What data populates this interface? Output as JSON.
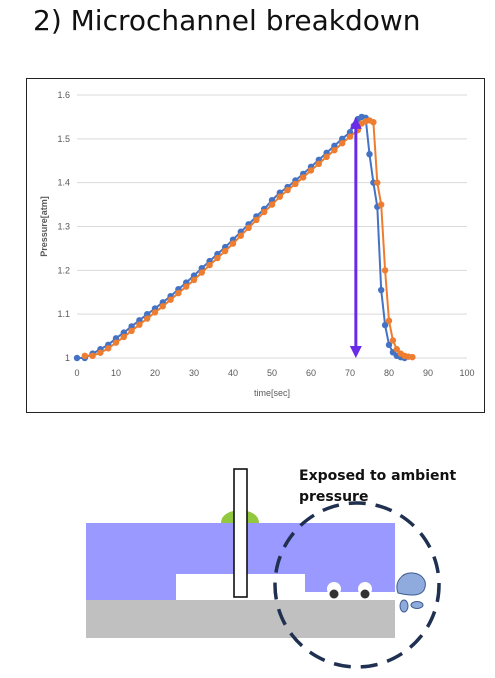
{
  "header": {
    "title": "2) Microchannel breakdown"
  },
  "chart_data": {
    "type": "line",
    "title": "",
    "xlabel": "time[sec]",
    "ylabel": "Pressure[atm]",
    "xlim": [
      0,
      100
    ],
    "ylim": [
      1,
      1.6
    ],
    "xticks": [
      "0",
      "10",
      "20",
      "30",
      "40",
      "50",
      "60",
      "70",
      "80",
      "90",
      "100"
    ],
    "yticks": [
      "1",
      "1.1",
      "1.2",
      "1.3",
      "1.4",
      "1.5",
      "1.6"
    ],
    "grid": true,
    "legend": "none",
    "series": [
      {
        "color": "#4472C4",
        "x": [
          0,
          2,
          4,
          6,
          8,
          10,
          12,
          14,
          16,
          18,
          20,
          22,
          24,
          26,
          28,
          30,
          32,
          34,
          36,
          38,
          40,
          42,
          44,
          46,
          48,
          50,
          52,
          54,
          56,
          58,
          60,
          62,
          64,
          66,
          68,
          70,
          71,
          72,
          73,
          74,
          75,
          76,
          77,
          78,
          79,
          80,
          81,
          82,
          83,
          84
        ],
        "y": [
          1.0,
          1.0,
          1.01,
          1.02,
          1.03,
          1.045,
          1.058,
          1.072,
          1.086,
          1.1,
          1.113,
          1.127,
          1.141,
          1.157,
          1.172,
          1.188,
          1.205,
          1.221,
          1.237,
          1.253,
          1.27,
          1.288,
          1.305,
          1.323,
          1.34,
          1.36,
          1.377,
          1.39,
          1.405,
          1.42,
          1.436,
          1.452,
          1.468,
          1.484,
          1.5,
          1.515,
          1.53,
          1.545,
          1.55,
          1.548,
          1.465,
          1.4,
          1.345,
          1.155,
          1.075,
          1.03,
          1.013,
          1.005,
          1.002,
          1.0
        ]
      },
      {
        "color": "#ED7D31",
        "x": [
          2,
          4,
          6,
          8,
          10,
          12,
          14,
          16,
          18,
          20,
          22,
          24,
          26,
          28,
          30,
          32,
          34,
          36,
          38,
          40,
          42,
          44,
          46,
          48,
          50,
          52,
          54,
          56,
          58,
          60,
          62,
          64,
          66,
          68,
          70,
          72,
          73,
          74,
          75,
          76,
          77,
          78,
          79,
          80,
          81,
          82,
          83,
          84,
          85,
          86
        ],
        "y": [
          1.005,
          1.005,
          1.012,
          1.022,
          1.035,
          1.048,
          1.062,
          1.076,
          1.09,
          1.104,
          1.118,
          1.133,
          1.148,
          1.163,
          1.178,
          1.195,
          1.212,
          1.228,
          1.244,
          1.261,
          1.279,
          1.297,
          1.315,
          1.333,
          1.35,
          1.368,
          1.383,
          1.397,
          1.412,
          1.428,
          1.443,
          1.459,
          1.474,
          1.49,
          1.505,
          1.52,
          1.535,
          1.54,
          1.542,
          1.538,
          1.4,
          1.35,
          1.2,
          1.085,
          1.04,
          1.02,
          1.01,
          1.005,
          1.003,
          1.002
        ]
      }
    ],
    "annotation": {
      "type": "double-arrow",
      "color": "#6A2BE8",
      "x": 71.5,
      "y_from": 1.0,
      "y_to": 1.55
    }
  },
  "diagram": {
    "label_line1": "Exposed to ambient",
    "label_line2": "pressure",
    "colors": {
      "chip": "#9999FF",
      "substrate": "#C0C0C0",
      "droplet": "#92C83E",
      "drop": "#8FAADC",
      "circle": "#1F3050"
    }
  }
}
